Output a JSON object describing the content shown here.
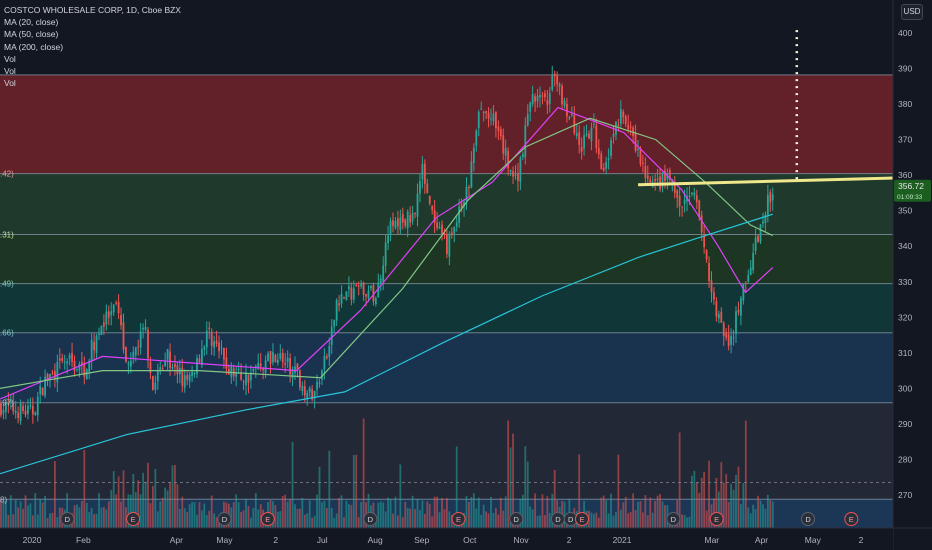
{
  "legend": {
    "title": "COSTCO WHOLESALE CORP, 1D, Cboe BZX",
    "indicators": [
      "MA (20, close)",
      "MA (50, close)",
      "MA (200, close)",
      "Vol",
      "Vol",
      "Vol"
    ]
  },
  "currency": "USD",
  "last_price": "356.72",
  "last_price_sub": "01:09:33",
  "fib_labels": [
    ".42)",
    ".31)",
    ".49)",
    ".66)",
    ".97)",
    "8)"
  ],
  "event_markers": [
    {
      "x": "2020-01-24",
      "letter": "D",
      "kind": "dividend"
    },
    {
      "x": "2020-03-05",
      "letter": "E",
      "kind": "earnings"
    },
    {
      "x": "2020-05-01",
      "letter": "D",
      "kind": "dividend"
    },
    {
      "x": "2020-05-28",
      "letter": "E",
      "kind": "earnings"
    },
    {
      "x": "2020-07-31",
      "letter": "D",
      "kind": "dividend"
    },
    {
      "x": "2020-09-24",
      "letter": "E",
      "kind": "earnings"
    },
    {
      "x": "2020-10-30",
      "letter": "D",
      "kind": "dividend"
    },
    {
      "x": "2020-11-25",
      "letter": "D",
      "kind": "dividend"
    },
    {
      "x": "2020-12-03",
      "letter": "D",
      "kind": "dividend"
    },
    {
      "x": "2020-12-10",
      "letter": "E",
      "kind": "earnings"
    },
    {
      "x": "2021-02-05",
      "letter": "D",
      "kind": "dividend"
    },
    {
      "x": "2021-03-04",
      "letter": "E",
      "kind": "earnings"
    },
    {
      "x": "2021-04-30",
      "letter": "D",
      "kind": "dividend"
    },
    {
      "x": "2021-05-27",
      "letter": "E",
      "kind": "earnings"
    }
  ],
  "colors": {
    "up": "#26a69a",
    "down": "#ef5350",
    "ma20": "#e040fb",
    "ma50": "#81c784",
    "ma200": "#26c6da",
    "trendline": "#f0e68c",
    "target": "#f5f5dc"
  },
  "chart_data": {
    "type": "candlestick",
    "title": "COSTCO WHOLESALE CORP, 1D, Cboe BZX",
    "y_ticks": [
      270,
      280,
      290,
      300,
      310,
      320,
      330,
      340,
      350,
      360,
      370,
      380,
      390,
      400
    ],
    "ylim": [
      263,
      405
    ],
    "x_ticks": [
      {
        "label": "2020",
        "x": "2020-01-02"
      },
      {
        "label": "Feb",
        "x": "2020-02-03"
      },
      {
        "label": "Apr",
        "x": "2020-04-01"
      },
      {
        "label": "May",
        "x": "2020-05-01"
      },
      {
        "label": "2",
        "x": "2020-06-02"
      },
      {
        "label": "Jul",
        "x": "2020-07-01"
      },
      {
        "label": "Aug",
        "x": "2020-08-03"
      },
      {
        "label": "Sep",
        "x": "2020-09-01"
      },
      {
        "label": "Oct",
        "x": "2020-10-01"
      },
      {
        "label": "Nov",
        "x": "2020-11-02"
      },
      {
        "label": "2",
        "x": "2020-12-02"
      },
      {
        "label": "2021",
        "x": "2021-01-04"
      },
      {
        "label": "Mar",
        "x": "2021-03-01"
      },
      {
        "label": "Apr",
        "x": "2021-04-01"
      },
      {
        "label": "May",
        "x": "2021-05-03"
      },
      {
        "label": "2",
        "x": "2021-06-02"
      }
    ],
    "xlim": [
      "2019-12-13",
      "2021-06-22"
    ],
    "price_path": [
      [
        "2019-12-13",
        295
      ],
      [
        "2020-01-02",
        293
      ],
      [
        "2020-01-10",
        302
      ],
      [
        "2020-01-24",
        308
      ],
      [
        "2020-02-03",
        305
      ],
      [
        "2020-02-14",
        318
      ],
      [
        "2020-02-24",
        322
      ],
      [
        "2020-03-02",
        305
      ],
      [
        "2020-03-12",
        318
      ],
      [
        "2020-03-18",
        299
      ],
      [
        "2020-03-25",
        310
      ],
      [
        "2020-04-08",
        301
      ],
      [
        "2020-04-21",
        316
      ],
      [
        "2020-05-04",
        305
      ],
      [
        "2020-05-14",
        303
      ],
      [
        "2020-06-02",
        310
      ],
      [
        "2020-06-16",
        303
      ],
      [
        "2020-06-25",
        297
      ],
      [
        "2020-07-06",
        312
      ],
      [
        "2020-07-10",
        325
      ],
      [
        "2020-07-23",
        328
      ],
      [
        "2020-08-04",
        326
      ],
      [
        "2020-08-11",
        345
      ],
      [
        "2020-08-26",
        348
      ],
      [
        "2020-09-02",
        362
      ],
      [
        "2020-09-09",
        345
      ],
      [
        "2020-09-17",
        340
      ],
      [
        "2020-09-30",
        356
      ],
      [
        "2020-10-07",
        378
      ],
      [
        "2020-10-15",
        376
      ],
      [
        "2020-10-26",
        362
      ],
      [
        "2020-10-30",
        358
      ],
      [
        "2020-11-09",
        383
      ],
      [
        "2020-11-17",
        380
      ],
      [
        "2020-11-23",
        388
      ],
      [
        "2020-12-01",
        378
      ],
      [
        "2020-12-10",
        368
      ],
      [
        "2020-12-17",
        373
      ],
      [
        "2020-12-23",
        362
      ],
      [
        "2021-01-04",
        378
      ],
      [
        "2021-01-12",
        368
      ],
      [
        "2021-01-22",
        356
      ],
      [
        "2021-02-02",
        360
      ],
      [
        "2021-02-09",
        351
      ],
      [
        "2021-02-19",
        354
      ],
      [
        "2021-02-25",
        336
      ],
      [
        "2021-03-05",
        320
      ],
      [
        "2021-03-08",
        316
      ],
      [
        "2021-03-11",
        311
      ],
      [
        "2021-03-19",
        324
      ],
      [
        "2021-03-24",
        334
      ],
      [
        "2021-04-01",
        346
      ],
      [
        "2021-04-08",
        356.72
      ]
    ],
    "ma_series": [
      {
        "name": "MA (20, close)",
        "points": [
          [
            "2019-12-13",
            297
          ],
          [
            "2020-02-15",
            309
          ],
          [
            "2020-04-15",
            307
          ],
          [
            "2020-06-15",
            305
          ],
          [
            "2020-07-25",
            322
          ],
          [
            "2020-09-10",
            348
          ],
          [
            "2020-10-15",
            358
          ],
          [
            "2020-11-25",
            379
          ],
          [
            "2021-01-05",
            372
          ],
          [
            "2021-02-10",
            356
          ],
          [
            "2021-03-05",
            340
          ],
          [
            "2021-03-22",
            327
          ],
          [
            "2021-04-08",
            334
          ]
        ]
      },
      {
        "name": "MA (50, close)",
        "points": [
          [
            "2019-12-13",
            300
          ],
          [
            "2020-02-15",
            305
          ],
          [
            "2020-04-15",
            305
          ],
          [
            "2020-06-30",
            303
          ],
          [
            "2020-08-20",
            328
          ],
          [
            "2020-09-30",
            353
          ],
          [
            "2020-11-05",
            368
          ],
          [
            "2020-12-15",
            376
          ],
          [
            "2021-01-25",
            370
          ],
          [
            "2021-02-25",
            358
          ],
          [
            "2021-03-25",
            346
          ],
          [
            "2021-04-08",
            343
          ]
        ]
      },
      {
        "name": "MA (200, close)",
        "points": [
          [
            "2019-12-13",
            276
          ],
          [
            "2020-03-01",
            287
          ],
          [
            "2020-05-15",
            294
          ],
          [
            "2020-07-15",
            299
          ],
          [
            "2020-09-15",
            313
          ],
          [
            "2020-11-15",
            326
          ],
          [
            "2021-01-15",
            337
          ],
          [
            "2021-02-25",
            343
          ],
          [
            "2021-04-08",
            349
          ]
        ]
      }
    ],
    "fib_levels": [
      {
        "price": 388.2,
        "fill": "#6b2129"
      },
      {
        "price": 360.42,
        "fill": "#213d2e"
      },
      {
        "price": 343.31,
        "fill": "#1f3a24"
      },
      {
        "price": 329.49,
        "fill": "#123a3a"
      },
      {
        "price": 315.66,
        "fill": "#1b3553"
      },
      {
        "price": 295.97,
        "fill": "#252a38"
      },
      {
        "price": 268.8,
        "fill": "#1e3a5c"
      }
    ],
    "drawings": {
      "horizontal_resistance": {
        "from": [
          "2021-01-14",
          357.3
        ],
        "to": [
          "2021-06-22",
          359.2
        ]
      },
      "target_projection": {
        "x": "2021-04-23",
        "from": 358.9,
        "to": 401
      }
    },
    "volume_scale_note": "volume bars in lower pane, unlabeled"
  }
}
